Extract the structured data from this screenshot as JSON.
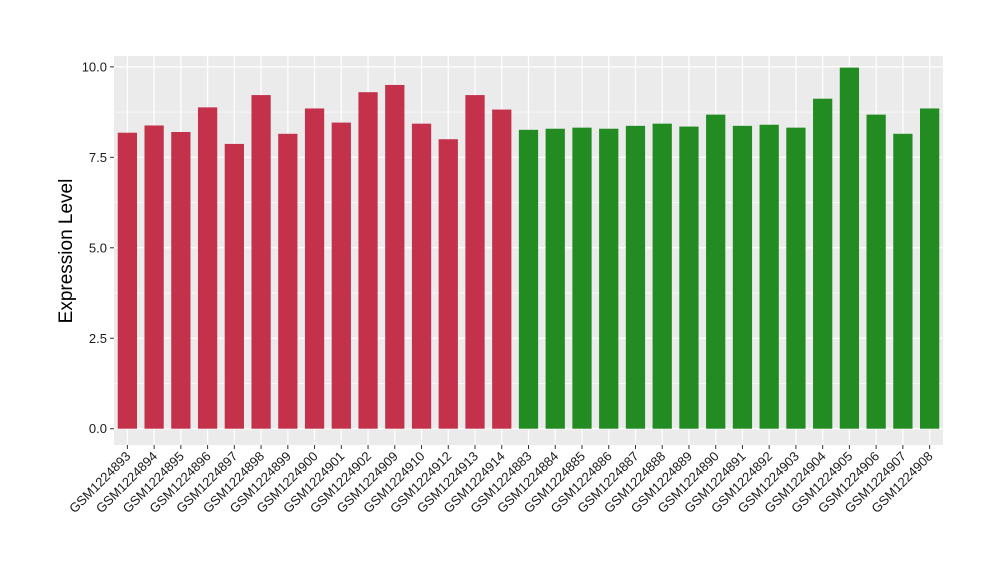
{
  "chart_data": {
    "type": "bar",
    "title": "",
    "xlabel": "",
    "ylabel": "Expression Level",
    "ylim": [
      -0.45,
      10.3
    ],
    "yticks": [
      0.0,
      2.5,
      5.0,
      7.5,
      10.0
    ],
    "ytick_labels": [
      "0.0",
      "2.5",
      "5.0",
      "7.5",
      "10.0"
    ],
    "grid": true,
    "legend": "none",
    "categories": [
      "GSM1224893",
      "GSM1224894",
      "GSM1224895",
      "GSM1224896",
      "GSM1224897",
      "GSM1224898",
      "GSM1224899",
      "GSM1224900",
      "GSM1224901",
      "GSM1224902",
      "GSM1224909",
      "GSM1224910",
      "GSM1224912",
      "GSM1224913",
      "GSM1224914",
      "GSM1224883",
      "GSM1224884",
      "GSM1224885",
      "GSM1224886",
      "GSM1224887",
      "GSM1224888",
      "GSM1224889",
      "GSM1224890",
      "GSM1224891",
      "GSM1224892",
      "GSM1224903",
      "GSM1224904",
      "GSM1224905",
      "GSM1224906",
      "GSM1224907",
      "GSM1224908"
    ],
    "values": [
      8.18,
      8.38,
      8.2,
      8.88,
      7.87,
      9.22,
      8.15,
      8.85,
      8.46,
      9.3,
      9.5,
      8.43,
      8.0,
      9.22,
      8.82,
      8.26,
      8.29,
      8.32,
      8.29,
      8.37,
      8.43,
      8.35,
      8.68,
      8.37,
      8.4,
      8.32,
      9.12,
      9.98,
      8.68,
      8.15,
      8.85
    ],
    "groups": [
      0,
      0,
      0,
      0,
      0,
      0,
      0,
      0,
      0,
      0,
      0,
      0,
      0,
      0,
      0,
      1,
      1,
      1,
      1,
      1,
      1,
      1,
      1,
      1,
      1,
      1,
      1,
      1,
      1,
      1,
      1
    ],
    "group_colors": [
      "#c4314b",
      "#228b22"
    ],
    "panel_color": "#ebebeb",
    "grid_color": "#ffffff"
  }
}
